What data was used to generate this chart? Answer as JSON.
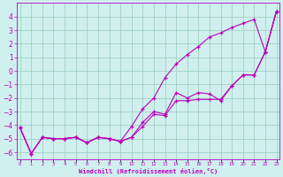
{
  "xlabel": "Windchill (Refroidissement éolien,°C)",
  "background_color": "#cff0ee",
  "grid_color": "#99ccbb",
  "line_color": "#bb00bb",
  "x_values": [
    0,
    1,
    2,
    3,
    4,
    5,
    6,
    7,
    8,
    9,
    10,
    11,
    12,
    13,
    14,
    15,
    16,
    17,
    18,
    19,
    20,
    21,
    22,
    23
  ],
  "line_top": [
    -4.2,
    -6.1,
    -4.9,
    -5.0,
    -5.0,
    -4.9,
    -5.3,
    -4.9,
    -5.0,
    -5.2,
    -4.1,
    -2.8,
    -2.0,
    -0.5,
    0.5,
    1.2,
    1.8,
    2.5,
    2.8,
    3.2,
    3.5,
    3.8,
    1.4,
    4.4
  ],
  "line_mid": [
    -4.2,
    -6.1,
    -4.9,
    -5.0,
    -5.0,
    -4.9,
    -5.3,
    -4.9,
    -5.0,
    -5.2,
    -4.9,
    -3.8,
    -3.0,
    -3.2,
    -1.6,
    -2.0,
    -1.6,
    -1.7,
    -2.2,
    -1.1,
    -0.3,
    -0.3,
    1.4,
    4.4
  ],
  "line_bot": [
    -4.2,
    -6.1,
    -4.9,
    -5.0,
    -5.0,
    -4.9,
    -5.3,
    -4.9,
    -5.0,
    -5.2,
    -4.9,
    -4.1,
    -3.2,
    -3.3,
    -2.2,
    -2.2,
    -2.1,
    -2.1,
    -2.1,
    -1.1,
    -0.3,
    -0.3,
    1.4,
    4.4
  ],
  "ylim": [
    -6.5,
    5.0
  ],
  "xlim": [
    -0.3,
    23.3
  ],
  "yticks": [
    -6,
    -5,
    -4,
    -3,
    -2,
    -1,
    0,
    1,
    2,
    3,
    4
  ],
  "xticks": [
    0,
    1,
    2,
    3,
    4,
    5,
    6,
    7,
    8,
    9,
    10,
    11,
    12,
    13,
    14,
    15,
    16,
    17,
    18,
    19,
    20,
    21,
    22,
    23
  ]
}
